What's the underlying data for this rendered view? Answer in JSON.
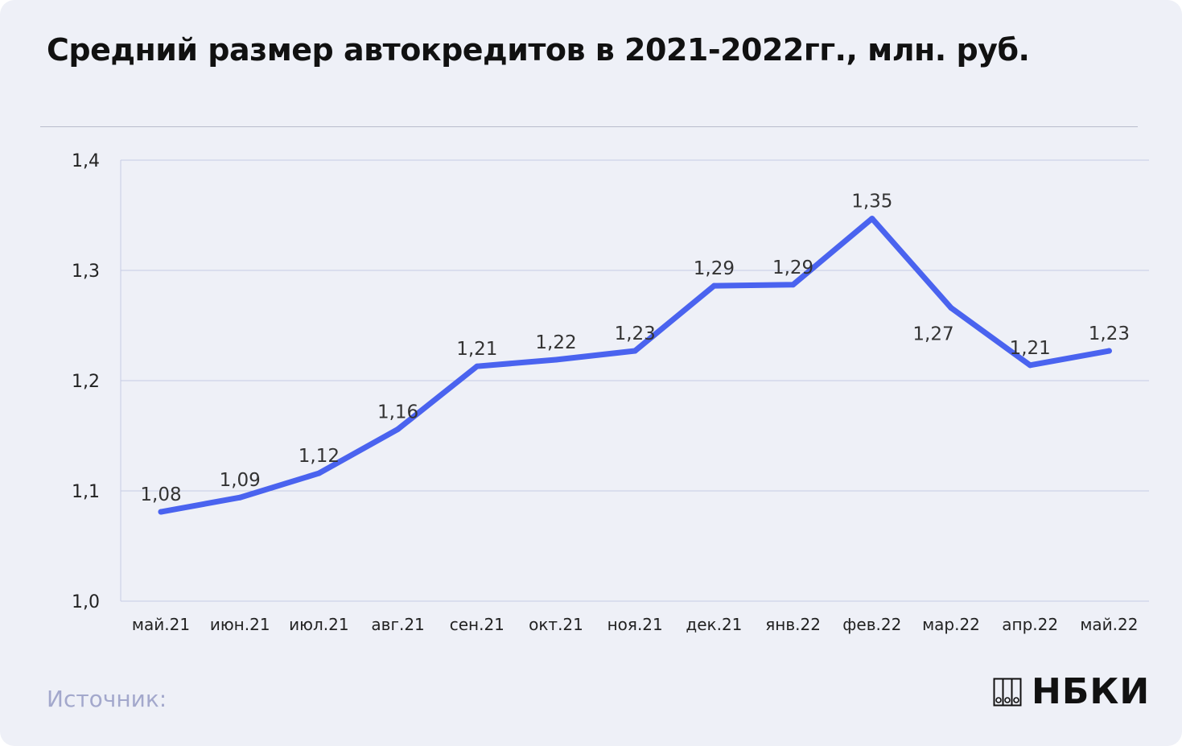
{
  "title": "Средний размер автокредитов в 2021-2022гг., млн. руб.",
  "source_label": "Источник:",
  "logo": {
    "text": "НБКИ",
    "icon": "nbki-logo-icon"
  },
  "colors": {
    "line": "#4a63ef",
    "grid": "#c7cbe6",
    "background": "#eef0f7"
  },
  "chart_data": {
    "type": "line",
    "title": "Средний размер автокредитов в 2021-2022гг., млн. руб.",
    "xlabel": "",
    "ylabel": "",
    "categories": [
      "май.21",
      "июн.21",
      "июл.21",
      "авг.21",
      "сен.21",
      "окт.21",
      "ноя.21",
      "дек.21",
      "янв.22",
      "фев.22",
      "мар.22",
      "апр.22",
      "май.22"
    ],
    "values": [
      1.081,
      1.094,
      1.116,
      1.156,
      1.213,
      1.219,
      1.227,
      1.286,
      1.287,
      1.347,
      1.266,
      1.214,
      1.227
    ],
    "data_labels": [
      "1,08",
      "1,09",
      "1,12",
      "1,16",
      "1,21",
      "1,22",
      "1,23",
      "1,29",
      "1,29",
      "1,35",
      "1,27",
      "1,21",
      "1,23"
    ],
    "ylim": [
      1.0,
      1.4
    ],
    "yticks": [
      1.0,
      1.1,
      1.2,
      1.3,
      1.4
    ],
    "ytick_labels": [
      "1,0",
      "1,1",
      "1,2",
      "1,3",
      "1,4"
    ],
    "grid": true,
    "legend": "none"
  }
}
